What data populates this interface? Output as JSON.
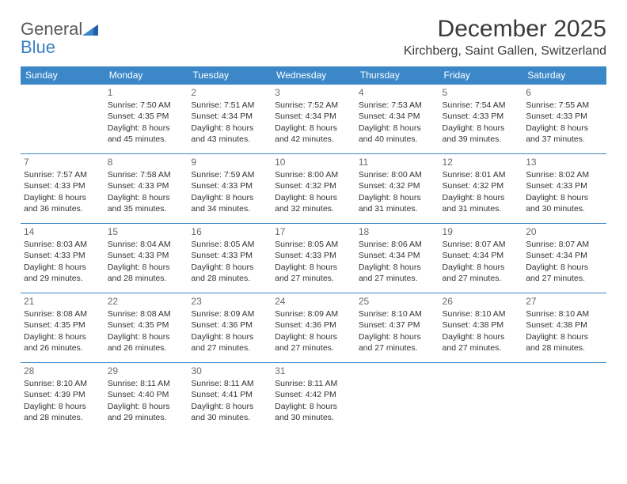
{
  "logo": {
    "word1": "General",
    "word2": "Blue"
  },
  "title": "December 2025",
  "location": "Kirchberg, Saint Gallen, Switzerland",
  "colors": {
    "header_bg": "#3b87c8",
    "header_text": "#ffffff",
    "border": "#3b87c8",
    "text": "#333333",
    "daynum": "#6b6b6b",
    "logo_gray": "#5a5a5a",
    "logo_blue": "#3b7fc4",
    "background": "#ffffff"
  },
  "typography": {
    "title_fontsize": 30,
    "location_fontsize": 16,
    "header_fontsize": 12,
    "cell_fontsize": 10.5,
    "daynum_fontsize": 12
  },
  "weekdays": [
    "Sunday",
    "Monday",
    "Tuesday",
    "Wednesday",
    "Thursday",
    "Friday",
    "Saturday"
  ],
  "weeks": [
    [
      null,
      {
        "day": "1",
        "sunrise": "Sunrise: 7:50 AM",
        "sunset": "Sunset: 4:35 PM",
        "daylight": "Daylight: 8 hours and 45 minutes."
      },
      {
        "day": "2",
        "sunrise": "Sunrise: 7:51 AM",
        "sunset": "Sunset: 4:34 PM",
        "daylight": "Daylight: 8 hours and 43 minutes."
      },
      {
        "day": "3",
        "sunrise": "Sunrise: 7:52 AM",
        "sunset": "Sunset: 4:34 PM",
        "daylight": "Daylight: 8 hours and 42 minutes."
      },
      {
        "day": "4",
        "sunrise": "Sunrise: 7:53 AM",
        "sunset": "Sunset: 4:34 PM",
        "daylight": "Daylight: 8 hours and 40 minutes."
      },
      {
        "day": "5",
        "sunrise": "Sunrise: 7:54 AM",
        "sunset": "Sunset: 4:33 PM",
        "daylight": "Daylight: 8 hours and 39 minutes."
      },
      {
        "day": "6",
        "sunrise": "Sunrise: 7:55 AM",
        "sunset": "Sunset: 4:33 PM",
        "daylight": "Daylight: 8 hours and 37 minutes."
      }
    ],
    [
      {
        "day": "7",
        "sunrise": "Sunrise: 7:57 AM",
        "sunset": "Sunset: 4:33 PM",
        "daylight": "Daylight: 8 hours and 36 minutes."
      },
      {
        "day": "8",
        "sunrise": "Sunrise: 7:58 AM",
        "sunset": "Sunset: 4:33 PM",
        "daylight": "Daylight: 8 hours and 35 minutes."
      },
      {
        "day": "9",
        "sunrise": "Sunrise: 7:59 AM",
        "sunset": "Sunset: 4:33 PM",
        "daylight": "Daylight: 8 hours and 34 minutes."
      },
      {
        "day": "10",
        "sunrise": "Sunrise: 8:00 AM",
        "sunset": "Sunset: 4:32 PM",
        "daylight": "Daylight: 8 hours and 32 minutes."
      },
      {
        "day": "11",
        "sunrise": "Sunrise: 8:00 AM",
        "sunset": "Sunset: 4:32 PM",
        "daylight": "Daylight: 8 hours and 31 minutes."
      },
      {
        "day": "12",
        "sunrise": "Sunrise: 8:01 AM",
        "sunset": "Sunset: 4:32 PM",
        "daylight": "Daylight: 8 hours and 31 minutes."
      },
      {
        "day": "13",
        "sunrise": "Sunrise: 8:02 AM",
        "sunset": "Sunset: 4:33 PM",
        "daylight": "Daylight: 8 hours and 30 minutes."
      }
    ],
    [
      {
        "day": "14",
        "sunrise": "Sunrise: 8:03 AM",
        "sunset": "Sunset: 4:33 PM",
        "daylight": "Daylight: 8 hours and 29 minutes."
      },
      {
        "day": "15",
        "sunrise": "Sunrise: 8:04 AM",
        "sunset": "Sunset: 4:33 PM",
        "daylight": "Daylight: 8 hours and 28 minutes."
      },
      {
        "day": "16",
        "sunrise": "Sunrise: 8:05 AM",
        "sunset": "Sunset: 4:33 PM",
        "daylight": "Daylight: 8 hours and 28 minutes."
      },
      {
        "day": "17",
        "sunrise": "Sunrise: 8:05 AM",
        "sunset": "Sunset: 4:33 PM",
        "daylight": "Daylight: 8 hours and 27 minutes."
      },
      {
        "day": "18",
        "sunrise": "Sunrise: 8:06 AM",
        "sunset": "Sunset: 4:34 PM",
        "daylight": "Daylight: 8 hours and 27 minutes."
      },
      {
        "day": "19",
        "sunrise": "Sunrise: 8:07 AM",
        "sunset": "Sunset: 4:34 PM",
        "daylight": "Daylight: 8 hours and 27 minutes."
      },
      {
        "day": "20",
        "sunrise": "Sunrise: 8:07 AM",
        "sunset": "Sunset: 4:34 PM",
        "daylight": "Daylight: 8 hours and 27 minutes."
      }
    ],
    [
      {
        "day": "21",
        "sunrise": "Sunrise: 8:08 AM",
        "sunset": "Sunset: 4:35 PM",
        "daylight": "Daylight: 8 hours and 26 minutes."
      },
      {
        "day": "22",
        "sunrise": "Sunrise: 8:08 AM",
        "sunset": "Sunset: 4:35 PM",
        "daylight": "Daylight: 8 hours and 26 minutes."
      },
      {
        "day": "23",
        "sunrise": "Sunrise: 8:09 AM",
        "sunset": "Sunset: 4:36 PM",
        "daylight": "Daylight: 8 hours and 27 minutes."
      },
      {
        "day": "24",
        "sunrise": "Sunrise: 8:09 AM",
        "sunset": "Sunset: 4:36 PM",
        "daylight": "Daylight: 8 hours and 27 minutes."
      },
      {
        "day": "25",
        "sunrise": "Sunrise: 8:10 AM",
        "sunset": "Sunset: 4:37 PM",
        "daylight": "Daylight: 8 hours and 27 minutes."
      },
      {
        "day": "26",
        "sunrise": "Sunrise: 8:10 AM",
        "sunset": "Sunset: 4:38 PM",
        "daylight": "Daylight: 8 hours and 27 minutes."
      },
      {
        "day": "27",
        "sunrise": "Sunrise: 8:10 AM",
        "sunset": "Sunset: 4:38 PM",
        "daylight": "Daylight: 8 hours and 28 minutes."
      }
    ],
    [
      {
        "day": "28",
        "sunrise": "Sunrise: 8:10 AM",
        "sunset": "Sunset: 4:39 PM",
        "daylight": "Daylight: 8 hours and 28 minutes."
      },
      {
        "day": "29",
        "sunrise": "Sunrise: 8:11 AM",
        "sunset": "Sunset: 4:40 PM",
        "daylight": "Daylight: 8 hours and 29 minutes."
      },
      {
        "day": "30",
        "sunrise": "Sunrise: 8:11 AM",
        "sunset": "Sunset: 4:41 PM",
        "daylight": "Daylight: 8 hours and 30 minutes."
      },
      {
        "day": "31",
        "sunrise": "Sunrise: 8:11 AM",
        "sunset": "Sunset: 4:42 PM",
        "daylight": "Daylight: 8 hours and 30 minutes."
      },
      null,
      null,
      null
    ]
  ]
}
